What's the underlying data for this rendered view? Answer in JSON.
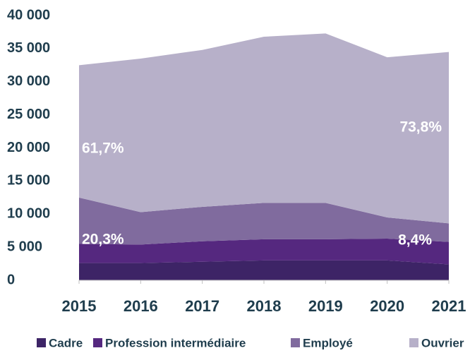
{
  "chart_data": {
    "type": "stacked_area",
    "categories": [
      "2015",
      "2016",
      "2017",
      "2018",
      "2019",
      "2020",
      "2021"
    ],
    "series": [
      {
        "name": "Cadre",
        "color": "#3d2466",
        "values": [
          2600,
          2600,
          2800,
          3000,
          3000,
          3000,
          2400
        ]
      },
      {
        "name": "Profession intermédiaire",
        "color": "#55287f",
        "values": [
          2900,
          2800,
          3100,
          3200,
          3200,
          3300,
          3400
        ]
      },
      {
        "name": "Employé",
        "color": "#806b9e",
        "values": [
          7000,
          4900,
          5200,
          5500,
          5500,
          3200,
          2800
        ]
      },
      {
        "name": "Ouvrier",
        "color": "#b7b0c9",
        "values": [
          20000,
          23200,
          23700,
          25100,
          25600,
          24200,
          25900
        ]
      }
    ],
    "annotations": [
      "61,7%",
      "73,8%",
      "20,3%",
      "8,4%"
    ],
    "ylim": [
      0,
      40000
    ],
    "yticks": [
      0,
      {
        "value": 5000,
        "label": "5 000"
      },
      {
        "value": 10000,
        "label": "10 000"
      },
      {
        "value": 15000,
        "label": "15 000"
      },
      {
        "value": 20000,
        "label": "20 000"
      },
      {
        "value": 25000,
        "label": "25 000"
      },
      {
        "value": 30000,
        "label": "30 000"
      },
      {
        "value": 35000,
        "label": "35 000"
      },
      {
        "value": 40000,
        "label": "40 000"
      }
    ],
    "legend": "bottom"
  }
}
